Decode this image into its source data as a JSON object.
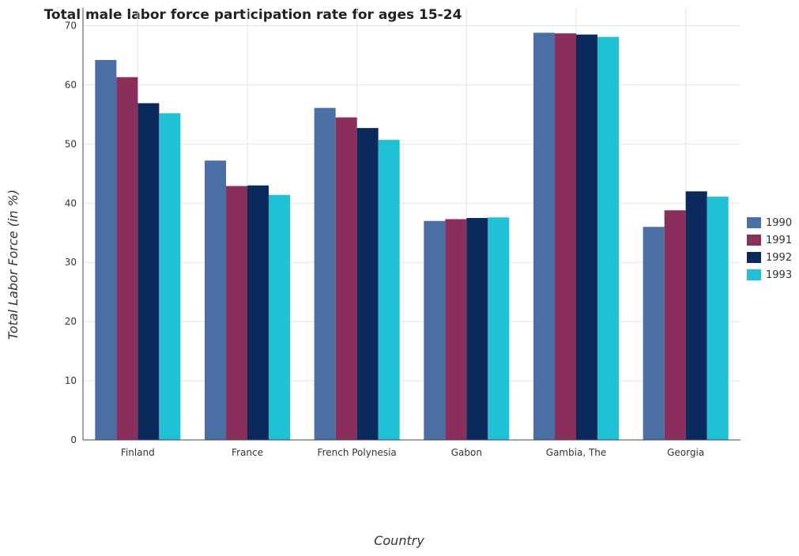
{
  "chart_data": {
    "type": "bar",
    "title": "Total male labor force participation rate for ages 15-24",
    "xlabel": "Country",
    "ylabel": "Total Labor Force (in %)",
    "ylim": [
      0,
      73
    ],
    "yticks": [
      0,
      10,
      20,
      30,
      40,
      50,
      60,
      70
    ],
    "grid": true,
    "legend_position": "right",
    "categories": [
      "Finland",
      "France",
      "French Polynesia",
      "Gabon",
      "Gambia, The",
      "Georgia"
    ],
    "series": [
      {
        "name": "1990",
        "color": "#4a6fa5",
        "values": [
          64.2,
          47.2,
          56.1,
          37.0,
          68.8,
          36.0
        ]
      },
      {
        "name": "1991",
        "color": "#8a2e5c",
        "values": [
          61.3,
          42.9,
          54.5,
          37.3,
          68.7,
          38.8
        ]
      },
      {
        "name": "1992",
        "color": "#0a2a5e",
        "values": [
          56.9,
          43.0,
          52.7,
          37.5,
          68.5,
          42.0
        ]
      },
      {
        "name": "1993",
        "color": "#1fc1d4",
        "values": [
          55.2,
          41.4,
          50.7,
          37.6,
          68.1,
          41.1
        ]
      }
    ]
  }
}
